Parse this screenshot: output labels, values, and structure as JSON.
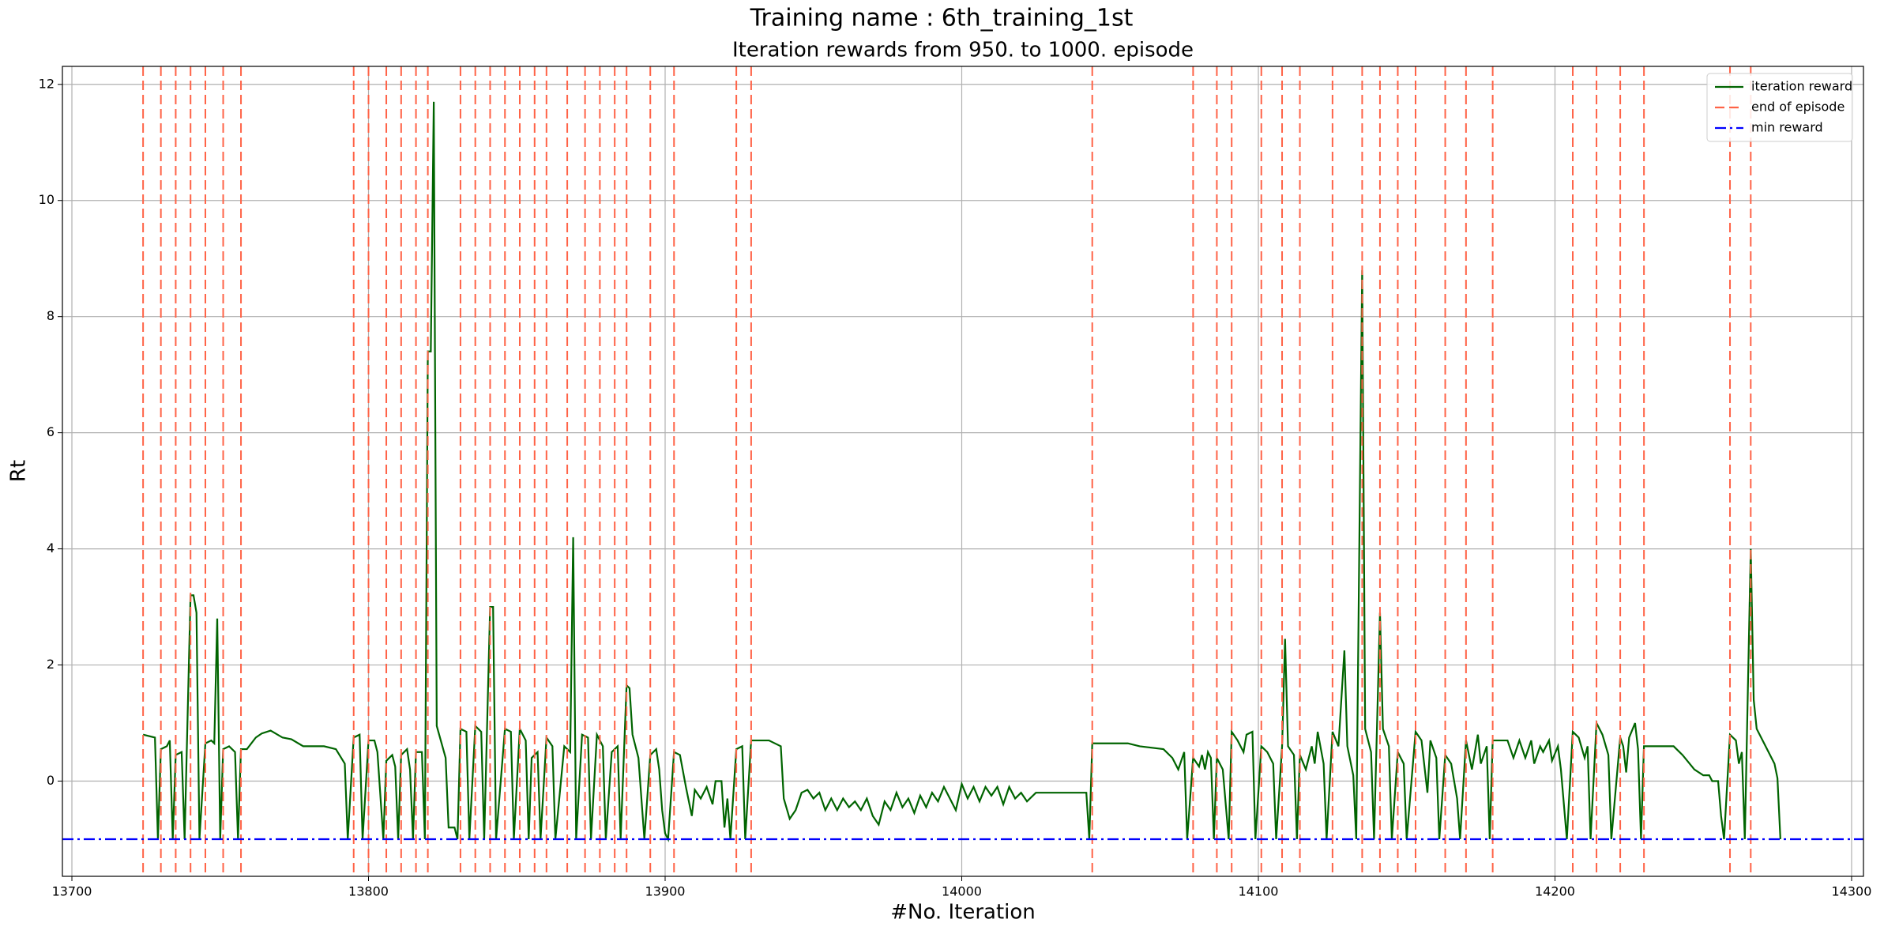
{
  "chart_data": {
    "type": "line",
    "title": "Training name : 6th_training_1st",
    "subtitle": "Iteration rewards from 950. to 1000. episode",
    "xlabel": "#No. Iteration",
    "ylabel": "Rt",
    "xlim": [
      13696.8,
      14304
    ],
    "ylim": [
      -1.64,
      12.31
    ],
    "xticks": [
      13700,
      13800,
      13900,
      14000,
      14100,
      14200,
      14300
    ],
    "yticks": [
      0,
      2,
      4,
      6,
      8,
      10,
      12
    ],
    "grid": true,
    "legend": "upper right",
    "series": [
      {
        "name": "iteration reward",
        "color": "#006400",
        "style": "solid",
        "x": [
          13724,
          13728,
          13729,
          13730,
          13732,
          13733,
          13734,
          13735,
          13737,
          13738,
          13740,
          13741,
          13742,
          13743,
          13745,
          13747,
          13748,
          13749,
          13750,
          13751,
          13753,
          13755,
          13756,
          13757,
          13759,
          13762,
          13764,
          13767,
          13771,
          13774,
          13778,
          13785,
          13789,
          13792,
          13793,
          13795,
          13797,
          13798,
          13800,
          13802,
          13803,
          13805,
          13806,
          13808,
          13809,
          13810,
          13811,
          13813,
          13814,
          13815,
          13816,
          13818,
          13819,
          13820,
          13821,
          13822,
          13823,
          13826,
          13827,
          13829,
          13830,
          13831,
          13833,
          13834,
          13836,
          13838,
          13839,
          13841,
          13842,
          13843,
          13846,
          13848,
          13849,
          13851,
          13853,
          13854,
          13855,
          13857,
          13858,
          13860,
          13862,
          13863,
          13866,
          13868,
          13869,
          13870,
          13872,
          13874,
          13875,
          13877,
          13879,
          13880,
          13882,
          13884,
          13885,
          13887,
          13888,
          13889,
          13891,
          13893,
          13895,
          13897,
          13898,
          13899,
          13900,
          13901,
          13903,
          13905,
          13907,
          13909,
          13910,
          13912,
          13914,
          13916,
          13917,
          13919,
          13920,
          13921,
          13922,
          13924,
          13926,
          13927,
          13929,
          13935,
          13939,
          13940,
          13942,
          13944,
          13946,
          13948,
          13950,
          13952,
          13954,
          13956,
          13958,
          13960,
          13962,
          13964,
          13966,
          13968,
          13970,
          13972,
          13974,
          13976,
          13978,
          13980,
          13982,
          13984,
          13986,
          13988,
          13990,
          13992,
          13994,
          13996,
          13998,
          14000,
          14002,
          14004,
          14006,
          14008,
          14010,
          14012,
          14014,
          14016,
          14018,
          14020,
          14022,
          14025,
          14035,
          14042,
          14043,
          14044,
          14050,
          14056,
          14060,
          14068,
          14071,
          14073,
          14075,
          14076,
          14078,
          14080,
          14081,
          14082,
          14083,
          14084,
          14085,
          14086,
          14088,
          14090,
          14091,
          14093,
          14095,
          14096,
          14098,
          14099,
          14101,
          14103,
          14105,
          14106,
          14108,
          14109,
          14110,
          14112,
          14113,
          14114,
          14116,
          14118,
          14119,
          14120,
          14122,
          14123,
          14125,
          14127,
          14129,
          14130,
          14132,
          14133,
          14135,
          14136,
          14138,
          14139,
          14141,
          14142,
          14144,
          14145,
          14147,
          14149,
          14150,
          14153,
          14155,
          14157,
          14158,
          14160,
          14161,
          14163,
          14165,
          14167,
          14168,
          14170,
          14172,
          14174,
          14175,
          14177,
          14178,
          14179,
          14184,
          14186,
          14188,
          14190,
          14192,
          14193,
          14195,
          14196,
          14198,
          14199,
          14201,
          14202,
          14204,
          14206,
          14208,
          14210,
          14211,
          14212,
          14214,
          14216,
          14218,
          14219,
          14222,
          14223,
          14224,
          14225,
          14227,
          14228,
          14229,
          14230,
          14240,
          14243,
          14247,
          14250,
          14252,
          14253,
          14255,
          14256,
          14257,
          14259,
          14261,
          14262,
          14263,
          14264,
          14266,
          14267,
          14268,
          14271,
          14274,
          14275,
          14276
        ],
        "values": [
          0.8,
          0.75,
          -1,
          0.55,
          0.6,
          0.7,
          -1,
          0.45,
          0.5,
          -1,
          3.2,
          3.2,
          2.9,
          -1,
          0.65,
          0.7,
          0.65,
          2.8,
          -1,
          0.55,
          0.6,
          0.5,
          -1,
          0.55,
          0.55,
          0.75,
          0.82,
          0.87,
          0.75,
          0.72,
          0.6,
          0.6,
          0.55,
          0.3,
          -1,
          0.75,
          0.8,
          -1,
          0.7,
          0.7,
          0.5,
          -1,
          0.35,
          0.45,
          0.25,
          -1,
          0.45,
          0.55,
          0.2,
          -1,
          0.5,
          0.5,
          -1,
          7.4,
          7.4,
          11.7,
          0.95,
          0.4,
          -0.8,
          -0.8,
          -1,
          0.9,
          0.85,
          -1,
          0.95,
          0.85,
          -1,
          3.0,
          3.0,
          -1,
          0.9,
          0.85,
          -1,
          0.9,
          0.7,
          -1,
          0.4,
          0.5,
          -1,
          0.75,
          0.6,
          -1,
          0.6,
          0.5,
          4.2,
          -1,
          0.8,
          0.75,
          -1,
          0.8,
          0.6,
          -1,
          0.5,
          0.6,
          -1,
          1.65,
          1.6,
          0.8,
          0.4,
          -1,
          0.45,
          0.55,
          0.2,
          -0.5,
          -0.9,
          -1,
          0.5,
          0.45,
          -0.1,
          -0.6,
          -0.15,
          -0.3,
          -0.1,
          -0.4,
          0,
          0,
          -0.8,
          -0.3,
          -1,
          0.55,
          0.6,
          -1,
          0.7,
          0.7,
          0.6,
          -0.3,
          -0.65,
          -0.5,
          -0.2,
          -0.15,
          -0.3,
          -0.2,
          -0.5,
          -0.3,
          -0.5,
          -0.3,
          -0.45,
          -0.35,
          -0.5,
          -0.3,
          -0.6,
          -0.75,
          -0.35,
          -0.5,
          -0.2,
          -0.45,
          -0.3,
          -0.55,
          -0.25,
          -0.45,
          -0.2,
          -0.35,
          -0.1,
          -0.3,
          -0.5,
          -0.05,
          -0.3,
          -0.1,
          -0.35,
          -0.1,
          -0.25,
          -0.1,
          -0.4,
          -0.1,
          -0.3,
          -0.2,
          -0.35,
          -0.2,
          -0.2,
          -0.2,
          -1,
          0.65,
          0.65,
          0.65,
          0.6,
          0.55,
          0.4,
          0.2,
          0.5,
          -1,
          0.4,
          0.25,
          0.45,
          0.2,
          0.5,
          0.4,
          -1,
          0.4,
          0.2,
          -1,
          0.85,
          0.7,
          0.5,
          0.8,
          0.85,
          -1,
          0.6,
          0.5,
          0.3,
          -1,
          0.6,
          2.45,
          0.6,
          0.45,
          -1,
          0.45,
          0.2,
          0.6,
          0.3,
          0.85,
          0.3,
          -1,
          0.85,
          0.6,
          2.25,
          0.6,
          0.1,
          -1,
          8.8,
          0.9,
          0.5,
          -1,
          2.9,
          0.9,
          0.6,
          -1,
          0.5,
          0.3,
          -1,
          0.85,
          0.7,
          -0.2,
          0.7,
          0.4,
          -1,
          0.45,
          0.3,
          -0.3,
          -1,
          0.7,
          0.2,
          0.8,
          0.3,
          0.6,
          -1,
          0.7,
          0.7,
          0.4,
          0.7,
          0.4,
          0.7,
          0.3,
          0.6,
          0.5,
          0.7,
          0.35,
          0.6,
          0.2,
          -1,
          0.85,
          0.75,
          0.4,
          0.6,
          -1,
          1.0,
          0.8,
          0.45,
          -1,
          0.75,
          0.6,
          0.15,
          0.75,
          1.0,
          0.55,
          -1,
          0.6,
          0.6,
          0.45,
          0.2,
          0.1,
          0.1,
          0,
          0,
          -0.6,
          -1,
          0.8,
          0.7,
          0.3,
          0.5,
          -1,
          4.0,
          1.4,
          0.9,
          0.6,
          0.3,
          0.05,
          -1
        ]
      },
      {
        "name": "end of episode",
        "color": "#ff6347",
        "style": "dashed",
        "x": [
          13724,
          13730,
          13735,
          13740,
          13745,
          13751,
          13757,
          13795,
          13800,
          13806,
          13811,
          13816,
          13820,
          13831,
          13836,
          13841,
          13846,
          13851,
          13856,
          13860,
          13867,
          13873,
          13878,
          13883,
          13887,
          13895,
          13903,
          13924,
          13929,
          14044,
          14078,
          14086,
          14091,
          14101,
          14108,
          14114,
          14125,
          14135,
          14141,
          14147,
          14153,
          14163,
          14170,
          14179,
          14206,
          14214,
          14222,
          14230,
          14259,
          14266
        ]
      },
      {
        "name": "min reward",
        "color": "#0000ff",
        "style": "dashdot",
        "y": -1
      }
    ]
  }
}
